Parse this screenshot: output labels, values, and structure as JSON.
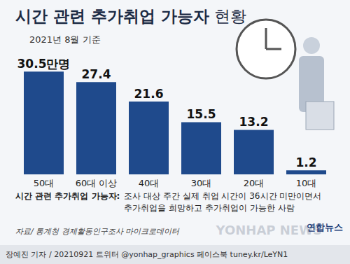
{
  "chart_data": {
    "type": "bar",
    "title": "시간 관련 추가취업 가능자",
    "title_suffix": "현황",
    "subtitle": "2021년 8월 기준",
    "categories": [
      "50대",
      "60대 이상",
      "40대",
      "30대",
      "20대",
      "10대"
    ],
    "values": [
      30.5,
      27.4,
      21.6,
      15.5,
      13.2,
      1.2
    ],
    "value_labels": [
      "30.5만명",
      "27.4",
      "21.6",
      "15.5",
      "13.2",
      "1.2"
    ],
    "data_labels": true,
    "color": "#1f4a8c",
    "ylim": [
      0,
      32
    ],
    "tick_labels": "x",
    "grid": false,
    "note_term": "시간 관련 추가취업 가능자:",
    "note_lines": [
      "조사 대상 주간 실제 취업 시간이 36시간 미만이면서",
      "추가취업을 희망하고 추가취업이 가능한 사람"
    ],
    "source": "자료/ 통계청 경제활동인구조사 마이크로데이터",
    "footer": "장예진 기자 / 20210921 트위터 @yonhap_graphics  페이스북 tuney.kr/LeYN1",
    "logo": "연합뉴스",
    "watermark": "YONHAP NEWS"
  }
}
